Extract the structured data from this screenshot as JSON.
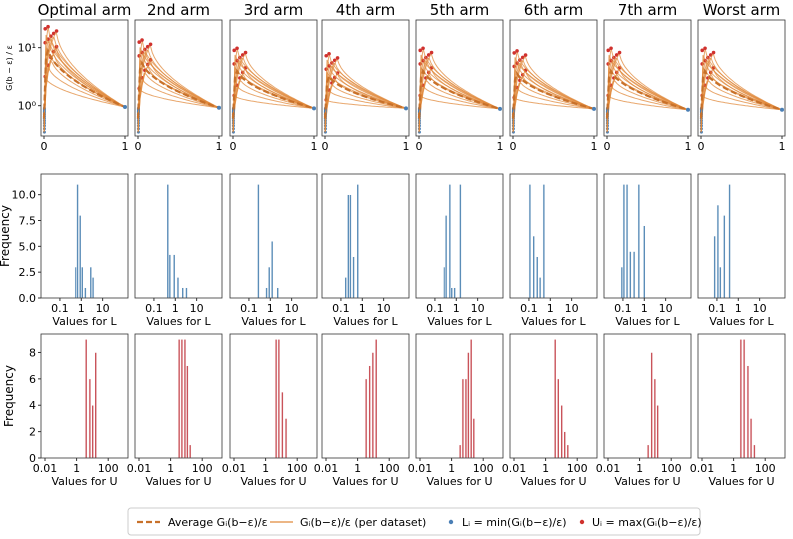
{
  "chart_data": {
    "type": "small-multiples",
    "columns": [
      "Optimal arm",
      "2nd arm",
      "3rd arm",
      "4th arm",
      "5th arm",
      "6th arm",
      "7th arm",
      "Worst arm"
    ],
    "colors": {
      "line": "#e08a3c",
      "avg_line": "#c8712a",
      "L_dot": "#4a7fb5",
      "U_dot": "#d0312d",
      "hist_L": "#5b8db8",
      "hist_U": "#c9535a"
    },
    "row1": {
      "type": "line",
      "ylabel": "G(b − ε) / ε",
      "yscale": "log",
      "ylim": [
        0.3,
        30
      ],
      "xlim": [
        0,
        1
      ],
      "xticks": [
        "0",
        "1"
      ],
      "yticks": [
        "10⁰",
        "10¹"
      ],
      "peak_values": [
        24,
        14,
        10,
        8,
        10,
        9,
        10,
        10
      ],
      "end_values": [
        0.95,
        0.92,
        0.9,
        0.9,
        0.88,
        0.88,
        0.85,
        0.85
      ]
    },
    "row2": {
      "type": "histogram",
      "ylabel": "Frequency",
      "xlabel": "Values for L",
      "xscale": "log",
      "xlim": [
        0.02,
        100
      ],
      "xticks": [
        "0.1",
        "1",
        "10"
      ],
      "ylim": [
        0,
        12
      ],
      "yticks": [
        "0.0",
        "2.5",
        "5.0",
        "7.5",
        "10.0"
      ],
      "bins": [
        [
          {
            "x": 0.5,
            "y": 3
          },
          {
            "x": 0.6,
            "y": 11
          },
          {
            "x": 0.8,
            "y": 8
          },
          {
            "x": 1.0,
            "y": 3
          },
          {
            "x": 1.4,
            "y": 1
          },
          {
            "x": 2.5,
            "y": 3
          },
          {
            "x": 3.2,
            "y": 2
          }
        ],
        [
          {
            "x": 0.4,
            "y": 11
          },
          {
            "x": 0.5,
            "y": 4.2
          },
          {
            "x": 0.8,
            "y": 4.2
          },
          {
            "x": 1.2,
            "y": 2
          },
          {
            "x": 2.0,
            "y": 1
          },
          {
            "x": 3.0,
            "y": 1
          }
        ],
        [
          {
            "x": 0.25,
            "y": 11
          },
          {
            "x": 0.6,
            "y": 1
          },
          {
            "x": 0.8,
            "y": 3
          },
          {
            "x": 1.1,
            "y": 5.5
          },
          {
            "x": 2.0,
            "y": 1
          }
        ],
        [
          {
            "x": 0.15,
            "y": 2
          },
          {
            "x": 0.2,
            "y": 10
          },
          {
            "x": 0.25,
            "y": 10
          },
          {
            "x": 0.35,
            "y": 4
          },
          {
            "x": 0.55,
            "y": 11
          }
        ],
        [
          {
            "x": 0.25,
            "y": 3
          },
          {
            "x": 0.3,
            "y": 8
          },
          {
            "x": 0.45,
            "y": 11
          },
          {
            "x": 0.55,
            "y": 1
          },
          {
            "x": 0.75,
            "y": 1
          },
          {
            "x": 1.4,
            "y": 11
          }
        ],
        [
          {
            "x": 0.1,
            "y": 11
          },
          {
            "x": 0.15,
            "y": 6
          },
          {
            "x": 0.22,
            "y": 4
          },
          {
            "x": 0.3,
            "y": 2
          },
          {
            "x": 0.45,
            "y": 11
          }
        ],
        [
          {
            "x": 0.08,
            "y": 3
          },
          {
            "x": 0.1,
            "y": 11
          },
          {
            "x": 0.14,
            "y": 11
          },
          {
            "x": 0.2,
            "y": 4.5
          },
          {
            "x": 0.3,
            "y": 4.5
          },
          {
            "x": 0.5,
            "y": 11
          },
          {
            "x": 0.9,
            "y": 7
          }
        ],
        [
          {
            "x": 0.07,
            "y": 6
          },
          {
            "x": 0.1,
            "y": 9
          },
          {
            "x": 0.13,
            "y": 3
          },
          {
            "x": 0.2,
            "y": 8
          },
          {
            "x": 0.35,
            "y": 11
          }
        ]
      ]
    },
    "row3": {
      "type": "histogram",
      "ylabel": "Frequency",
      "xlabel": "Values for U",
      "xscale": "log",
      "xlim": [
        0.01,
        1000
      ],
      "xticks": [
        "0.01",
        "1",
        "100"
      ],
      "ylim": [
        0,
        9.4
      ],
      "yticks": [
        "0",
        "2",
        "4",
        "6",
        "8"
      ],
      "bins": [
        [
          {
            "x": 3.5,
            "y": 9
          },
          {
            "x": 6,
            "y": 6
          },
          {
            "x": 9,
            "y": 4
          },
          {
            "x": 14,
            "y": 8
          }
        ],
        [
          {
            "x": 3,
            "y": 9
          },
          {
            "x": 4.5,
            "y": 9
          },
          {
            "x": 7,
            "y": 9
          },
          {
            "x": 10,
            "y": 7
          },
          {
            "x": 15,
            "y": 1
          }
        ],
        [
          {
            "x": 4,
            "y": 9
          },
          {
            "x": 6,
            "y": 9
          },
          {
            "x": 10,
            "y": 5
          },
          {
            "x": 17,
            "y": 3
          }
        ],
        [
          {
            "x": 3,
            "y": 6
          },
          {
            "x": 5,
            "y": 7
          },
          {
            "x": 8,
            "y": 8
          },
          {
            "x": 13,
            "y": 9
          }
        ],
        [
          {
            "x": 3,
            "y": 1
          },
          {
            "x": 4.5,
            "y": 6
          },
          {
            "x": 7,
            "y": 6
          },
          {
            "x": 10,
            "y": 8
          },
          {
            "x": 15,
            "y": 9
          },
          {
            "x": 22,
            "y": 3
          }
        ],
        [
          {
            "x": 3.5,
            "y": 9
          },
          {
            "x": 5.5,
            "y": 6
          },
          {
            "x": 9,
            "y": 4
          },
          {
            "x": 14,
            "y": 2
          },
          {
            "x": 22,
            "y": 1
          }
        ],
        [
          {
            "x": 3,
            "y": 1
          },
          {
            "x": 5,
            "y": 8
          },
          {
            "x": 8,
            "y": 6
          },
          {
            "x": 12,
            "y": 4
          }
        ],
        [
          {
            "x": 2.5,
            "y": 9
          },
          {
            "x": 4,
            "y": 9
          },
          {
            "x": 7,
            "y": 7
          },
          {
            "x": 11,
            "y": 3
          },
          {
            "x": 18,
            "y": 1
          }
        ]
      ]
    },
    "legend": [
      {
        "kind": "dashed",
        "label": "Average",
        "math": "Gᵢ(b−ε)/ε"
      },
      {
        "kind": "line",
        "label": "(per dataset)",
        "math": "Gᵢ(b−ε)/ε"
      },
      {
        "kind": "dot-L",
        "label": "Lᵢ = min(Gᵢ(b−ε)/ε)"
      },
      {
        "kind": "dot-U",
        "label": "Uᵢ = max(Gᵢ(b−ε)/ε)"
      }
    ]
  }
}
